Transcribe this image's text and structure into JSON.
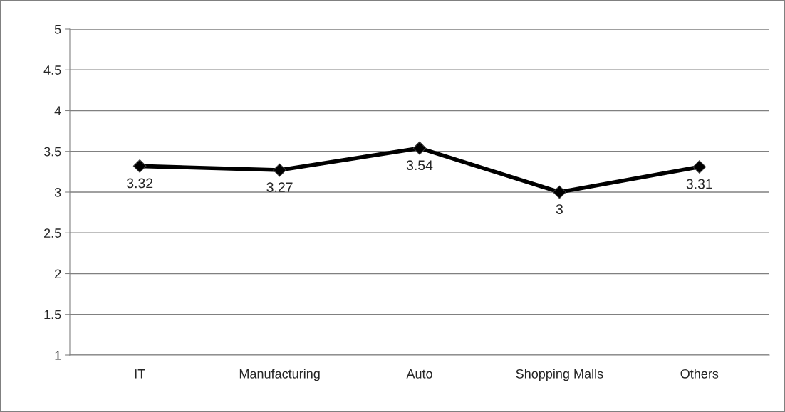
{
  "chart_data": {
    "type": "line",
    "categories": [
      "IT",
      "Manufacturing",
      "Auto",
      "Shopping Malls",
      "Others"
    ],
    "series": [
      {
        "color": "#000000",
        "values": [
          3.32,
          3.27,
          3.54,
          3,
          3.31
        ]
      }
    ],
    "ylim": [
      1,
      5
    ],
    "yticks": [
      1,
      1.5,
      2,
      2.5,
      3,
      3.5,
      4,
      4.5,
      5
    ],
    "grid": "y",
    "marker": "diamond",
    "line_style": "solid",
    "data_labels": true
  }
}
